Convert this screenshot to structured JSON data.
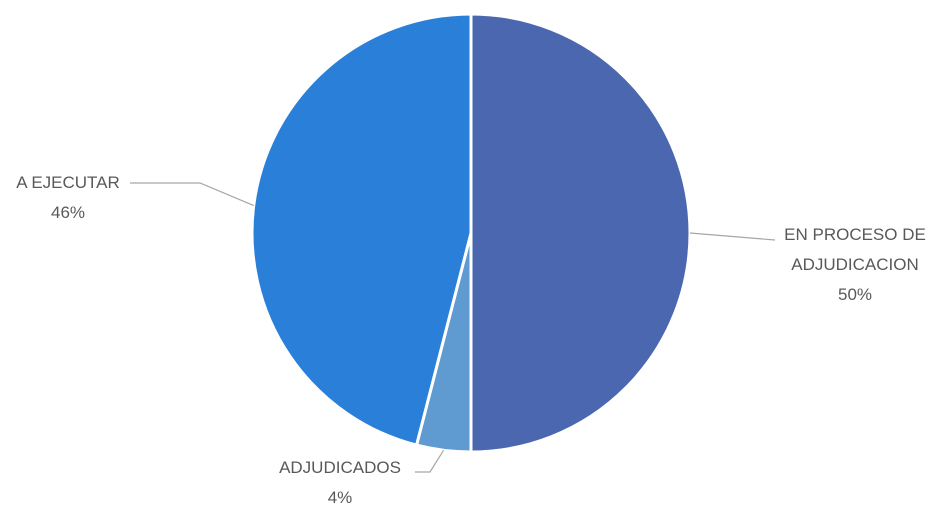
{
  "chart_data": {
    "type": "pie",
    "categories": [
      "EN PROCESO DE ADJUDICACION",
      "ADJUDICADOS",
      "A EJECUTAR"
    ],
    "values": [
      50,
      4,
      46
    ],
    "value_labels": [
      "50%",
      "4%",
      "46%"
    ],
    "colors": [
      "#4a67b0",
      "#5f9bd1",
      "#2a7fd8"
    ]
  }
}
